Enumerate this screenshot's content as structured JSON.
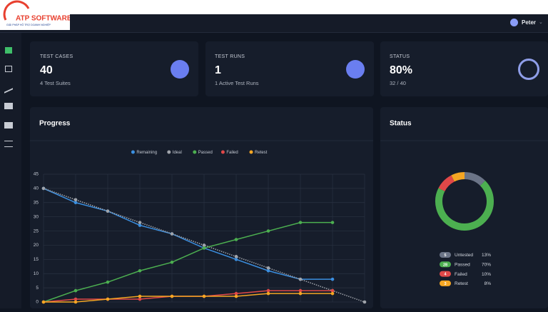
{
  "logo": {
    "title": "ATP SOFTWARE",
    "tagline": "GIẢI PHÁP HỖ TRỢ DOANH NGHIỆP"
  },
  "user": {
    "name": "Peter"
  },
  "cards": [
    {
      "label": "TEST CASES",
      "value": "40",
      "sub": "4 Test Suites"
    },
    {
      "label": "TEST RUNS",
      "value": "1",
      "sub": "1 Active Test Runs"
    },
    {
      "label": "STATUS",
      "value": "80%",
      "sub": "32 / 40"
    }
  ],
  "progress_chart": {
    "type": "line",
    "title": "Progress",
    "categories": [
      null,
      null,
      null,
      null,
      null,
      null,
      null,
      null,
      null,
      null,
      null
    ],
    "series": [
      {
        "name": "Remaining",
        "color": "#3b8fe0",
        "values": [
          40,
          35,
          32,
          27,
          24,
          19,
          15,
          11,
          8,
          8,
          null
        ]
      },
      {
        "name": "Ideal",
        "color": "#a0a4ab",
        "dashed": true,
        "values": [
          40,
          36,
          32,
          28,
          24,
          20,
          16,
          12,
          8,
          4,
          0
        ]
      },
      {
        "name": "Passed",
        "color": "#4caf50",
        "values": [
          0,
          4,
          7,
          11,
          14,
          19,
          22,
          25,
          28,
          28,
          null
        ]
      },
      {
        "name": "Failed",
        "color": "#e04848",
        "values": [
          0,
          1,
          1,
          1,
          2,
          2,
          3,
          4,
          4,
          4,
          null
        ]
      },
      {
        "name": "Retest",
        "color": "#f5a623",
        "values": [
          0,
          0,
          1,
          2,
          2,
          2,
          2,
          3,
          3,
          3,
          null
        ]
      }
    ],
    "ylim": [
      0,
      45
    ],
    "yticks": [
      0,
      5,
      10,
      15,
      20,
      25,
      30,
      35,
      40,
      45
    ],
    "grid": true,
    "legend": "top"
  },
  "status_chart": {
    "type": "donut",
    "title": "Status",
    "categories": [
      "Untested",
      "Passed",
      "Failed",
      "Retest"
    ],
    "values": [
      5,
      28,
      4,
      3
    ],
    "colors": [
      "#6b7487",
      "#4caf50",
      "#e04848",
      "#f5a623"
    ],
    "percent_labels": [
      "13%",
      "70%",
      "10%",
      "8%"
    ]
  }
}
